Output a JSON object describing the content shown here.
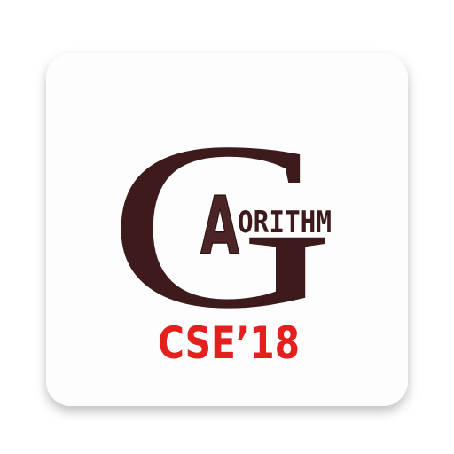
{
  "logo": {
    "big_letter": "G",
    "small_letter": "A",
    "word_rest": "ORITHM",
    "subtitle": "CSE’18"
  }
}
